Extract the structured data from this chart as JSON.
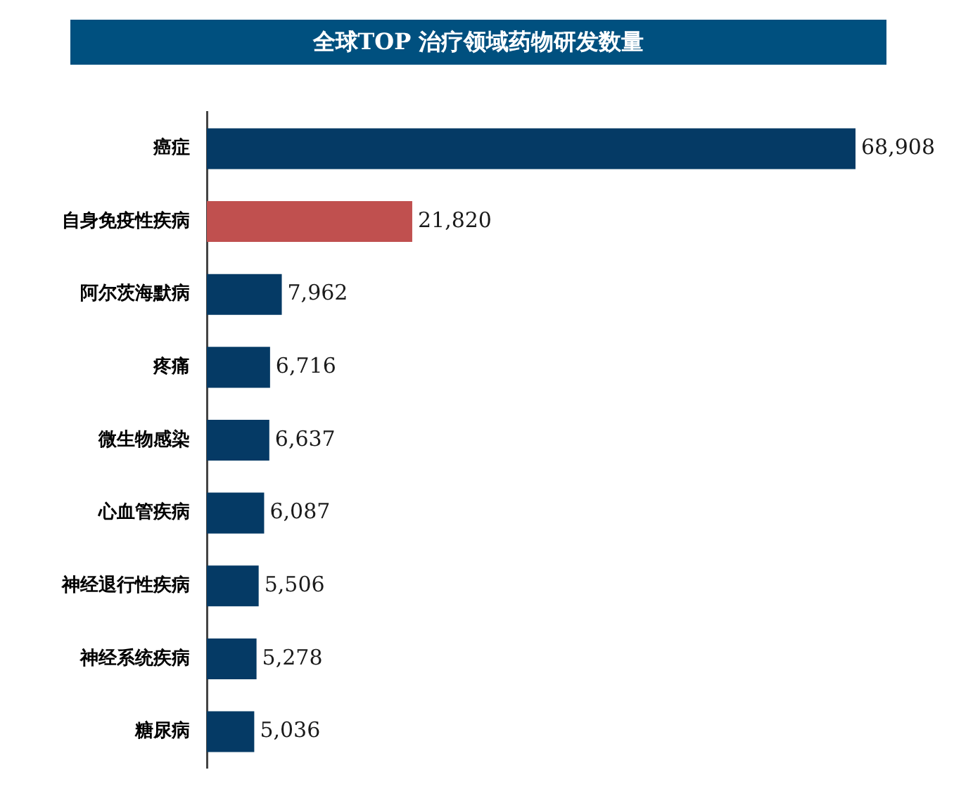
{
  "chart_data": {
    "type": "bar",
    "orientation": "horizontal",
    "title": "全球TOP 治疗领域药物研发数量",
    "categories": [
      "癌症",
      "自身免疫性疾病",
      "阿尔茨海默病",
      "疼痛",
      "微生物感染",
      "心血管疾病",
      "神经退行性疾病",
      "神经系统疾病",
      "糖尿病"
    ],
    "values": [
      68908,
      21820,
      7962,
      6716,
      6637,
      6087,
      5506,
      5278,
      5036
    ],
    "colors": [
      "#053a65",
      "#c0504f",
      "#053a65",
      "#053a65",
      "#053a65",
      "#053a65",
      "#053a65",
      "#053a65",
      "#053a65"
    ],
    "value_labels": [
      "68,908",
      "21,820",
      "7,962",
      "6,716",
      "6,637",
      "6,087",
      "5,506",
      "5,278",
      "5,036"
    ]
  }
}
